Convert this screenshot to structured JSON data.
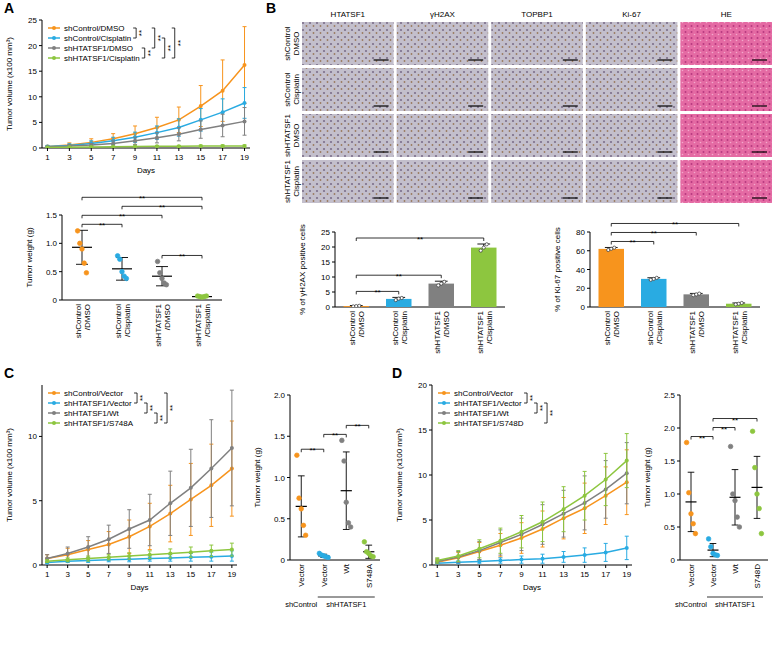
{
  "panel_labels": [
    "A",
    "B",
    "C",
    "D"
  ],
  "micrographs": {
    "columns": [
      "HTATSF1",
      "γH2AX",
      "TOPBP1",
      "Ki-67",
      "HE"
    ],
    "rows": [
      [
        "shControl",
        "DMSO"
      ],
      [
        "shControl",
        "Cisplatin"
      ],
      [
        "shHTATSF1",
        "DMSO"
      ],
      [
        "shHTATSF1",
        "Cisplatin"
      ]
    ]
  },
  "chart_data": [
    {
      "type": "line",
      "x_label": "Days",
      "y_label": "Tumor volume (x100 mm³)",
      "x": [
        1,
        3,
        5,
        7,
        9,
        11,
        13,
        15,
        17,
        19
      ],
      "xlim": [
        0.5,
        19.5
      ],
      "xticks": [
        1,
        3,
        5,
        7,
        9,
        11,
        13,
        15,
        17,
        19
      ],
      "ylim": [
        0,
        25
      ],
      "yticks": [
        0,
        5,
        10,
        15,
        20,
        25
      ],
      "legend": "upper left",
      "marker": "circle",
      "series": [
        {
          "name": "shControl/DMSO",
          "color": "#f7941d",
          "values": [
            0.3,
            0.6,
            1.1,
            1.8,
            2.8,
            4.0,
            5.5,
            8.2,
            11.2,
            16.2
          ],
          "errors": [
            0.2,
            0.4,
            0.7,
            1.0,
            1.5,
            2.0,
            2.5,
            4.0,
            6.0,
            7.5
          ]
        },
        {
          "name": "shControl/Cisplatin",
          "color": "#29abe2",
          "values": [
            0.3,
            0.5,
            0.9,
            1.4,
            2.1,
            3.0,
            4.0,
            5.5,
            7.0,
            8.8
          ],
          "errors": [
            0.2,
            0.3,
            0.5,
            0.7,
            1.0,
            1.3,
            1.7,
            2.2,
            2.6,
            3.0
          ]
        },
        {
          "name": "shHTATSF1/DMSO",
          "color": "#808080",
          "values": [
            0.2,
            0.4,
            0.6,
            0.9,
            1.4,
            2.0,
            2.7,
            3.6,
            4.4,
            5.2
          ],
          "errors": [
            0.1,
            0.2,
            0.3,
            0.5,
            0.7,
            1.0,
            1.3,
            1.7,
            2.2,
            2.7
          ]
        },
        {
          "name": "shHTATSF1/Cisplatin",
          "color": "#8dc63f",
          "values": [
            0.1,
            0.15,
            0.2,
            0.25,
            0.3,
            0.35,
            0.35,
            0.4,
            0.4,
            0.4
          ],
          "errors": [
            0.05,
            0.05,
            0.1,
            0.1,
            0.1,
            0.1,
            0.15,
            0.15,
            0.2,
            0.2
          ]
        }
      ],
      "annotations": [
        {
          "text": "**",
          "pair": [
            0,
            1
          ]
        },
        {
          "text": "**",
          "pair": [
            0,
            2
          ]
        },
        {
          "text": "**",
          "pair": [
            0,
            3
          ]
        },
        {
          "text": "**",
          "pair": [
            1,
            3
          ]
        },
        {
          "text": "**",
          "pair": [
            2,
            3
          ]
        }
      ]
    },
    {
      "type": "dot",
      "y_label": "Tumor weight (g)",
      "categories": [
        "shControl/DMSO",
        "shControl/Cisplatin",
        "shHTATSF1/DMSO",
        "shHTATSF1/Cisplatin"
      ],
      "colors": [
        "#f7941d",
        "#29abe2",
        "#808080",
        "#8dc63f"
      ],
      "values": [
        0.93,
        0.55,
        0.42,
        0.06
      ],
      "errors": [
        0.3,
        0.2,
        0.17,
        0.01
      ],
      "points": [
        [
          1.22,
          1.0,
          0.9,
          0.65,
          0.48
        ],
        [
          0.78,
          0.72,
          0.5,
          0.42,
          0.38
        ],
        [
          0.68,
          0.48,
          0.38,
          0.3,
          0.27
        ],
        [
          0.07,
          0.06,
          0.05,
          0.06,
          0.07
        ]
      ],
      "ylim": [
        0,
        1.5
      ],
      "yticks": [
        0,
        0.5,
        {
          "value": 1,
          "label": "1.0"
        },
        1.5
      ],
      "annotations": [
        {
          "text": "**",
          "pair": [
            0,
            1
          ]
        },
        {
          "text": "**",
          "pair": [
            0,
            2
          ]
        },
        {
          "text": "**",
          "pair": [
            0,
            3
          ]
        },
        {
          "text": "**",
          "pair": [
            1,
            3
          ]
        },
        {
          "text": "**",
          "pair": [
            2,
            3
          ]
        }
      ]
    },
    {
      "type": "bar",
      "y_label": "% of γH2AX positive cells",
      "categories": [
        "shControl/DMSO",
        "shControl/Cisplatin",
        "shHTATSF1/DMSO",
        "shHTATSF1/Cisplatin"
      ],
      "colors": [
        "#f7941d",
        "#29abe2",
        "#808080",
        "#8dc63f"
      ],
      "values": [
        0.3,
        2.7,
        7.8,
        19.8
      ],
      "errors": [
        0.2,
        0.5,
        0.8,
        1.2
      ],
      "points": [
        [
          0.2,
          0.3,
          0.4
        ],
        [
          2.3,
          2.8,
          3.0
        ],
        [
          7.2,
          7.8,
          8.4
        ],
        [
          18.8,
          19.8,
          20.9
        ]
      ],
      "ylim": [
        0,
        25
      ],
      "yticks": [
        0,
        5,
        10,
        15,
        20,
        25
      ],
      "annotations": [
        {
          "text": "**",
          "pair": [
            0,
            1
          ]
        },
        {
          "text": "**",
          "pair": [
            0,
            2
          ]
        },
        {
          "text": "**",
          "pair": [
            0,
            3
          ]
        }
      ]
    },
    {
      "type": "bar",
      "y_label": "% of Ki-67 positive cells",
      "categories": [
        "shControl/DMSO",
        "shControl/Cisplatin",
        "shHTATSF1/DMSO",
        "shHTATSF1/Cisplatin"
      ],
      "colors": [
        "#f7941d",
        "#29abe2",
        "#808080",
        "#8dc63f"
      ],
      "values": [
        62,
        30,
        13.5,
        3.5
      ],
      "errors": [
        1.5,
        1.2,
        1.0,
        0.8
      ],
      "points": [
        [
          60.8,
          62.1,
          63.3
        ],
        [
          29,
          30,
          31.1
        ],
        [
          12.6,
          13.4,
          14.3
        ],
        [
          2.8,
          3.5,
          4.3
        ]
      ],
      "ylim": [
        0,
        80
      ],
      "yticks": [
        0,
        20,
        40,
        60,
        80
      ],
      "annotations": [
        {
          "text": "**",
          "pair": [
            0,
            1
          ]
        },
        {
          "text": "**",
          "pair": [
            0,
            2
          ]
        },
        {
          "text": "**",
          "pair": [
            0,
            3
          ]
        }
      ]
    },
    {
      "type": "line",
      "x_label": "Days",
      "y_label": "Tumor volume (x100 mm³)",
      "x": [
        1,
        3,
        5,
        7,
        9,
        11,
        13,
        15,
        17,
        19
      ],
      "xlim": [
        0.5,
        19.5
      ],
      "xticks": [
        1,
        3,
        5,
        7,
        9,
        11,
        13,
        15,
        17,
        19
      ],
      "ylim": [
        0,
        14
      ],
      "yticks": [
        0,
        5,
        10
      ],
      "legend": "upper left",
      "marker": "circle",
      "series": [
        {
          "name": "shControl/Vector",
          "color": "#f7941d",
          "values": [
            0.5,
            0.8,
            1.2,
            1.6,
            2.2,
            3.0,
            4.0,
            5.1,
            6.2,
            7.5
          ],
          "errors": [
            0.3,
            0.5,
            0.7,
            1.0,
            1.3,
            1.8,
            2.2,
            2.8,
            3.2,
            3.7
          ]
        },
        {
          "name": "shHTATSF1/Vector",
          "color": "#29abe2",
          "values": [
            0.2,
            0.3,
            0.35,
            0.4,
            0.45,
            0.5,
            0.55,
            0.6,
            0.65,
            0.7
          ],
          "errors": [
            0.1,
            0.1,
            0.15,
            0.15,
            0.2,
            0.2,
            0.25,
            0.3,
            0.35,
            0.4
          ]
        },
        {
          "name": "shHTATSF1/Wt",
          "color": "#808080",
          "values": [
            0.5,
            0.9,
            1.4,
            2.0,
            2.8,
            3.5,
            4.8,
            6.0,
            7.5,
            9.1
          ],
          "errors": [
            0.3,
            0.5,
            0.8,
            1.1,
            1.5,
            2.0,
            2.5,
            3.0,
            3.8,
            4.5
          ]
        },
        {
          "name": "shHTATSF1/S748A",
          "color": "#8dc63f",
          "values": [
            0.3,
            0.4,
            0.5,
            0.6,
            0.7,
            0.8,
            0.9,
            1.0,
            1.1,
            1.2
          ],
          "errors": [
            0.1,
            0.15,
            0.2,
            0.2,
            0.25,
            0.3,
            0.35,
            0.4,
            0.45,
            0.5
          ]
        }
      ],
      "annotations": [
        {
          "text": "**",
          "pair": [
            0,
            1
          ]
        },
        {
          "text": "**",
          "pair": [
            0,
            3
          ]
        },
        {
          "text": "**",
          "pair": [
            1,
            2
          ]
        },
        {
          "text": "**",
          "pair": [
            2,
            3
          ]
        }
      ]
    },
    {
      "type": "dot",
      "y_label": "Tumor weight (g)",
      "categories": [
        "Vector",
        "Vector",
        "Wt",
        "S748A"
      ],
      "groups": [
        {
          "label": "shControl",
          "from": 0,
          "to": 0
        },
        {
          "label": "shHTATSF1",
          "from": 1,
          "to": 3
        }
      ],
      "colors": [
        "#f7941d",
        "#29abe2",
        "#808080",
        "#8dc63f"
      ],
      "values": [
        0.65,
        0.05,
        0.84,
        0.1
      ],
      "errors": [
        0.37,
        0.02,
        0.47,
        0.08
      ],
      "points": [
        [
          1.27,
          0.75,
          0.62,
          0.42,
          0.3
        ],
        [
          0.08,
          0.06,
          0.05,
          0.04,
          0.03
        ],
        [
          1.45,
          1.2,
          0.7,
          0.45,
          0.4
        ],
        [
          0.22,
          0.1,
          0.08,
          0.05,
          0.04
        ]
      ],
      "ylim": [
        0,
        2
      ],
      "yticks": [
        0,
        0.5,
        {
          "value": 1,
          "label": "1.0"
        },
        1.5,
        {
          "value": 2,
          "label": "2.0"
        }
      ],
      "annotations": [
        {
          "text": "**",
          "pair": [
            0,
            1
          ]
        },
        {
          "text": "**",
          "pair": [
            1,
            2
          ]
        },
        {
          "text": "**",
          "pair": [
            2,
            3
          ]
        }
      ]
    },
    {
      "type": "line",
      "x_label": "Days",
      "y_label": "Tumor volume (x100 mm³)",
      "x": [
        1,
        3,
        5,
        7,
        9,
        11,
        13,
        15,
        17,
        19
      ],
      "xlim": [
        0.5,
        19.5
      ],
      "xticks": [
        1,
        3,
        5,
        7,
        9,
        11,
        13,
        15,
        17,
        19
      ],
      "ylim": [
        0,
        20
      ],
      "yticks": [
        0,
        5,
        10,
        15,
        20
      ],
      "legend": "upper left",
      "marker": "circle",
      "series": [
        {
          "name": "shControl/Vector",
          "color": "#f7941d",
          "values": [
            0.3,
            0.8,
            1.5,
            2.2,
            3.0,
            4.0,
            5.2,
            6.3,
            7.7,
            9.2
          ],
          "errors": [
            0.3,
            0.6,
            1.0,
            1.3,
            1.7,
            2.0,
            2.3,
            2.8,
            3.2,
            3.6
          ]
        },
        {
          "name": "shHTATSF1/Vector",
          "color": "#29abe2",
          "values": [
            0.2,
            0.3,
            0.4,
            0.5,
            0.6,
            0.7,
            0.9,
            1.1,
            1.4,
            1.9
          ],
          "errors": [
            0.1,
            0.15,
            0.2,
            0.3,
            0.4,
            0.5,
            0.6,
            0.8,
            1.0,
            1.3
          ]
        },
        {
          "name": "shHTATSF1/Wt",
          "color": "#808080",
          "values": [
            0.4,
            0.9,
            1.6,
            2.5,
            3.4,
            4.5,
            5.7,
            6.9,
            8.4,
            10.2
          ],
          "errors": [
            0.3,
            0.6,
            1.0,
            1.4,
            1.8,
            2.2,
            2.6,
            3.0,
            3.2,
            3.4
          ]
        },
        {
          "name": "shHTATSF1/S748D",
          "color": "#8dc63f",
          "values": [
            0.5,
            1.0,
            1.8,
            2.7,
            3.7,
            4.8,
            6.2,
            7.7,
            9.5,
            11.6
          ],
          "errors": [
            0.3,
            0.6,
            1.0,
            1.4,
            1.8,
            2.2,
            2.5,
            2.7,
            2.9,
            3.0
          ]
        }
      ],
      "annotations": [
        {
          "text": "**",
          "pair": [
            0,
            1
          ]
        },
        {
          "text": "**",
          "pair": [
            1,
            2
          ]
        },
        {
          "text": "**",
          "pair": [
            1,
            3
          ]
        }
      ]
    },
    {
      "type": "dot",
      "y_label": "Tumor weight (g)",
      "categories": [
        "Vector",
        "Vector",
        "Wt",
        "S748D"
      ],
      "groups": [
        {
          "label": "shControl",
          "from": 0,
          "to": 0
        },
        {
          "label": "shHTATSF1",
          "from": 1,
          "to": 3
        }
      ],
      "colors": [
        "#f7941d",
        "#29abe2",
        "#808080",
        "#8dc63f"
      ],
      "values": [
        0.88,
        0.15,
        0.95,
        1.1
      ],
      "errors": [
        0.45,
        0.1,
        0.42,
        0.47
      ],
      "points": [
        [
          1.78,
          1.02,
          0.7,
          0.55,
          0.4
        ],
        [
          0.32,
          0.2,
          0.1,
          0.08,
          0.07
        ],
        [
          1.72,
          1.0,
          0.9,
          0.65,
          0.5
        ],
        [
          1.95,
          1.4,
          1.0,
          0.78,
          0.4
        ]
      ],
      "ylim": [
        0,
        2.5
      ],
      "yticks": [
        0,
        0.5,
        {
          "value": 1,
          "label": "1.0"
        },
        1.5,
        {
          "value": 2,
          "label": "2.0"
        },
        2.5
      ],
      "annotations": [
        {
          "text": "**",
          "pair": [
            0,
            1
          ]
        },
        {
          "text": "**",
          "pair": [
            1,
            2
          ]
        },
        {
          "text": "**",
          "pair": [
            1,
            3
          ]
        }
      ]
    }
  ]
}
